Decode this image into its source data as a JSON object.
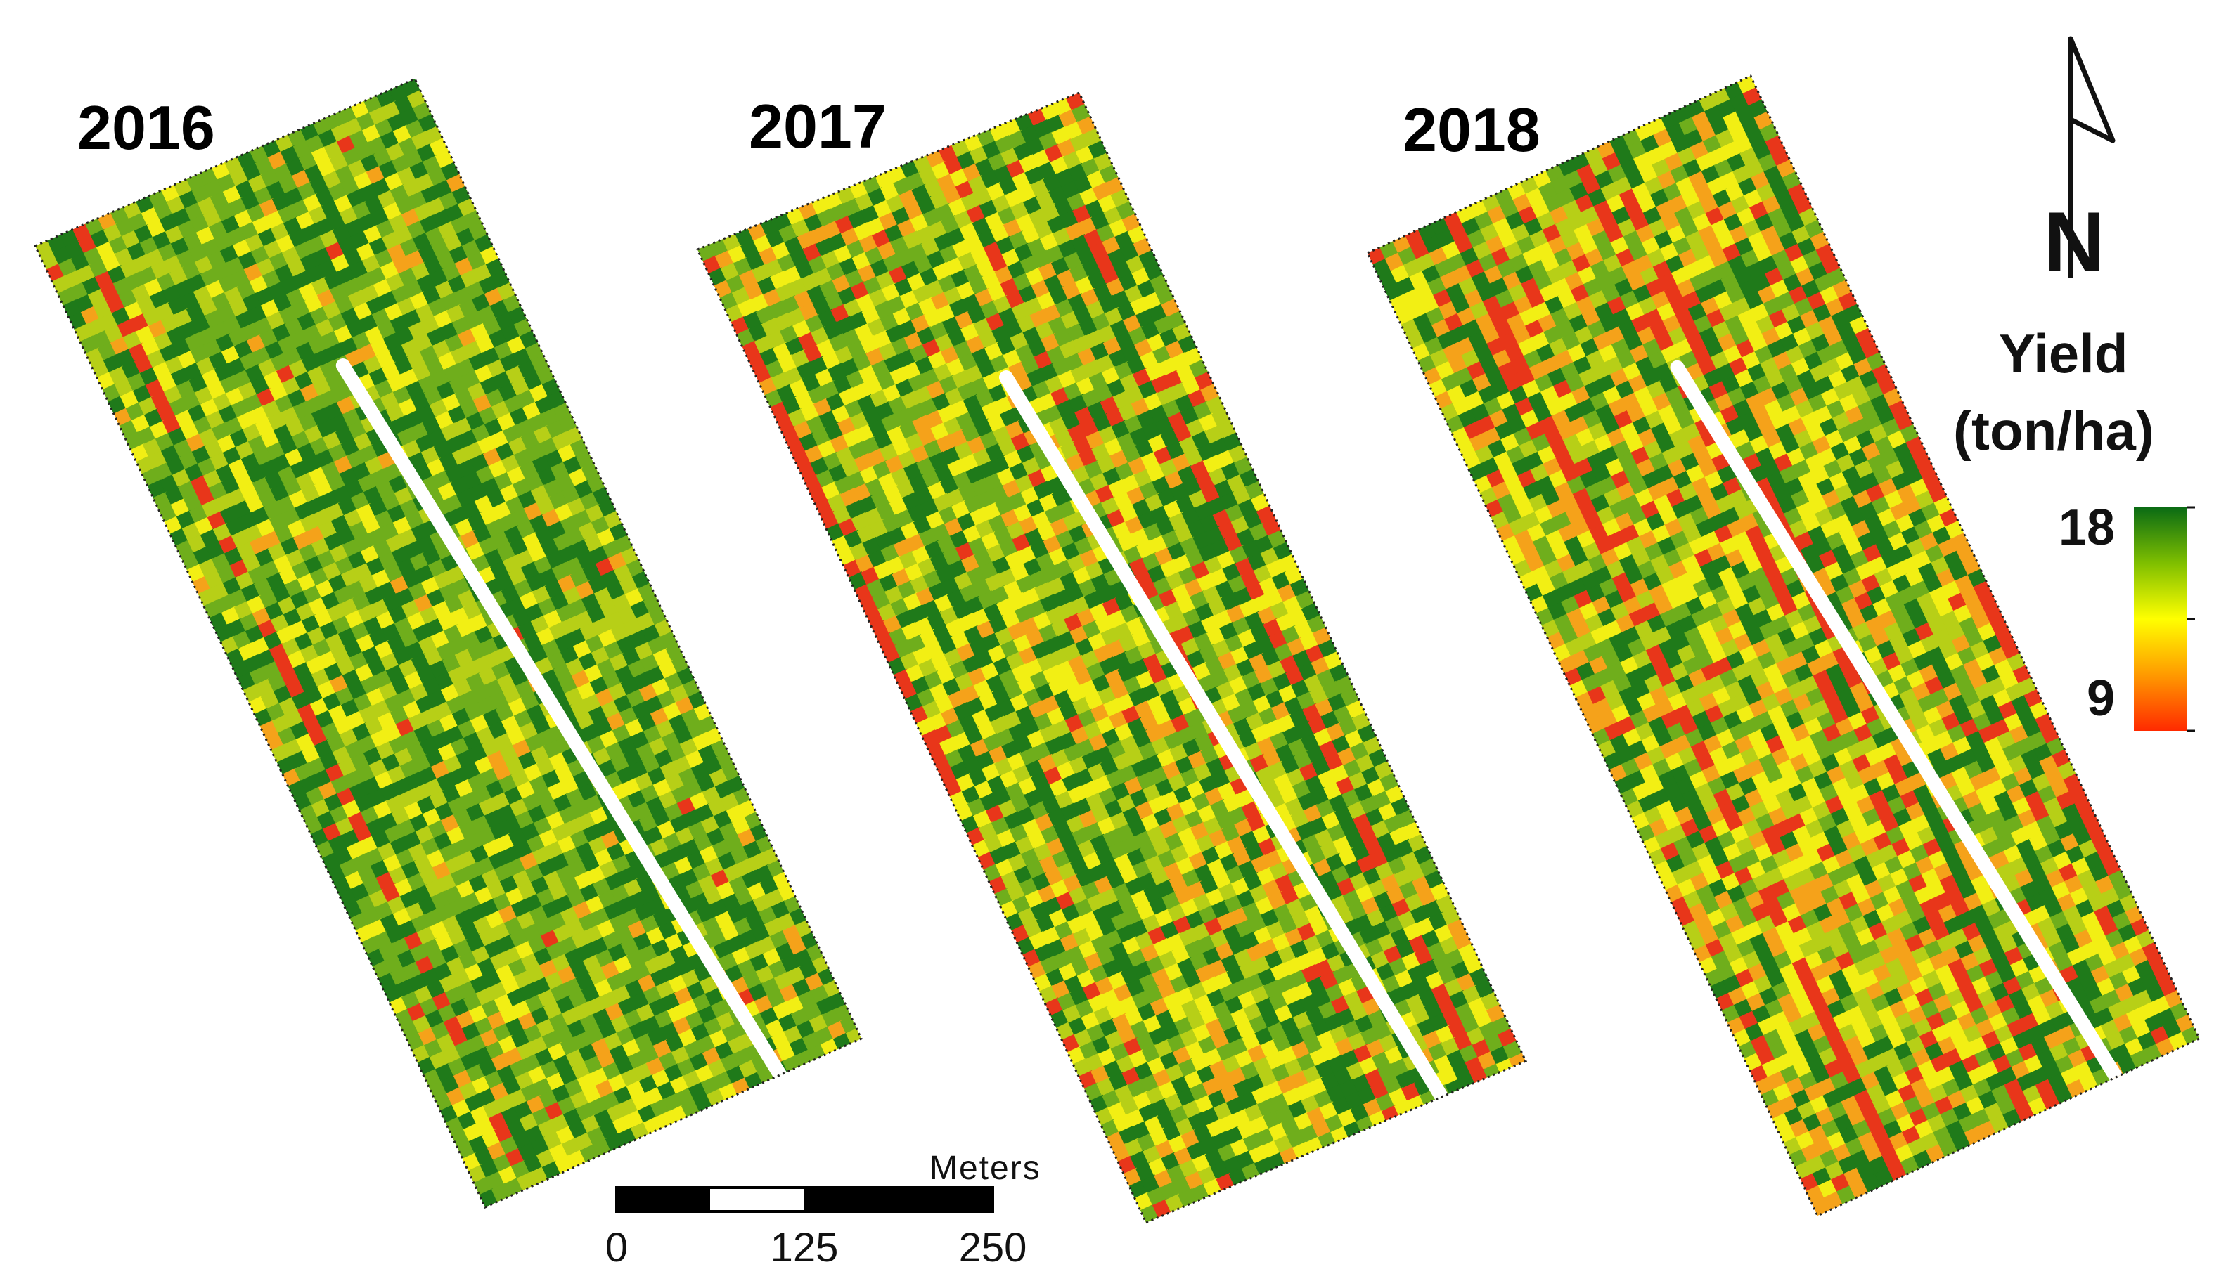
{
  "panels": [
    {
      "year": "2016",
      "tone": "green"
    },
    {
      "year": "2017",
      "tone": "mixed"
    },
    {
      "year": "2018",
      "tone": "orange"
    }
  ],
  "legend": {
    "title_line1": "Yield",
    "title_line2": "(ton/ha)",
    "max_label": "18",
    "min_label": "9",
    "colors": [
      "#ff2a00",
      "#ff9a00",
      "#ffff00",
      "#7fbf00",
      "#0a6b14"
    ]
  },
  "scale_bar": {
    "unit": "Meters",
    "tick_labels": [
      "0",
      "125",
      "250"
    ]
  },
  "north_arrow": {
    "label": "N"
  },
  "palette": {
    "dark_green": "#1f7a1a",
    "green": "#6fae1c",
    "yellow_green": "#b7cf17",
    "yellow": "#f2ef14",
    "orange": "#f5a21a",
    "red": "#e8361a"
  }
}
